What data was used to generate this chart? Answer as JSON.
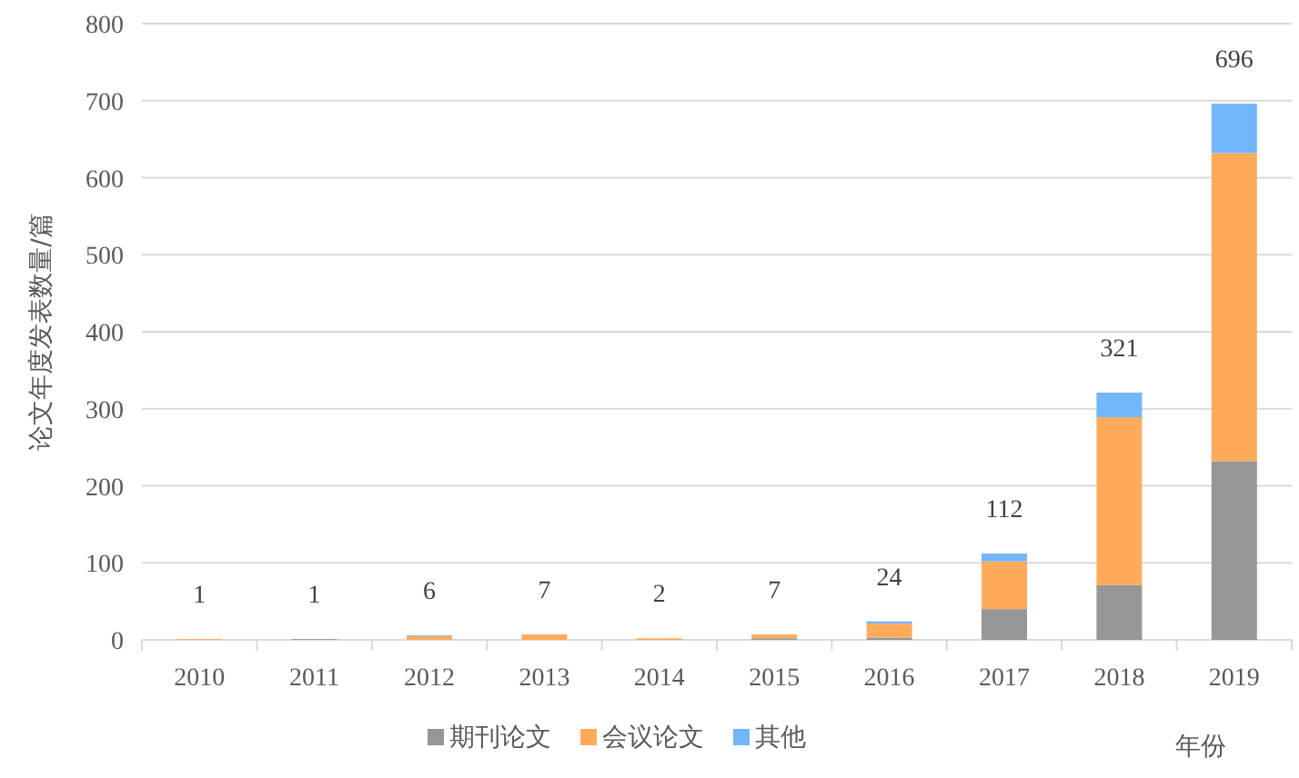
{
  "chart_data": {
    "type": "bar",
    "stacked": true,
    "xlabel": "年份",
    "ylabel": "论文年度发表数量/篇",
    "categories": [
      "2010",
      "2011",
      "2012",
      "2013",
      "2014",
      "2015",
      "2016",
      "2017",
      "2018",
      "2019"
    ],
    "series": [
      {
        "name": "期刊论文",
        "color": "#969696",
        "values": [
          0,
          1,
          0,
          0,
          0,
          2,
          3,
          40,
          71,
          232
        ]
      },
      {
        "name": "会议论文",
        "color": "#ffab5a",
        "values": [
          1,
          0,
          5,
          7,
          2,
          5,
          18,
          62,
          218,
          400
        ]
      },
      {
        "name": "其他",
        "color": "#72b6fb",
        "values": [
          0,
          0,
          1,
          0,
          0,
          0,
          3,
          10,
          32,
          64
        ]
      }
    ],
    "totals": [
      "1",
      "1",
      "6",
      "7",
      "2",
      "7",
      "24",
      "112",
      "321",
      "696"
    ],
    "ylim": [
      0,
      800
    ],
    "yticks": [
      0,
      100,
      200,
      300,
      400,
      500,
      600,
      700,
      800
    ],
    "grid": "y",
    "legend": "bottom"
  }
}
